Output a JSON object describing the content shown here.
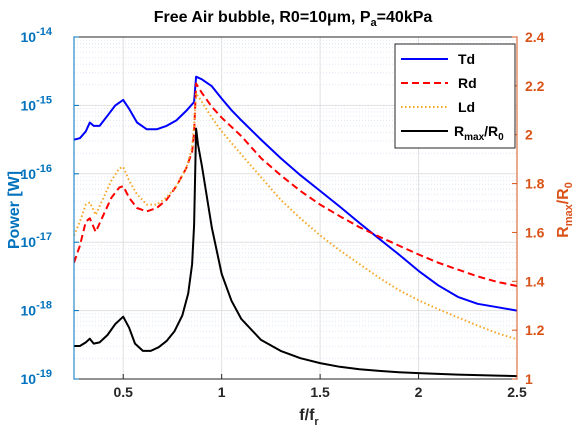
{
  "chart_data": {
    "type": "line",
    "title": "Free Air bubble, R0=10μm, P",
    "title_sub": "a",
    "title_tail": "=40kPa",
    "xlabel": "f/f",
    "xlabel_sub": "r",
    "ylabel_left": "Power [W]",
    "ylabel_right_main": "R",
    "ylabel_right_sub1": "max",
    "ylabel_right_mid": "/R",
    "ylabel_right_sub2": "0",
    "xlim": [
      0.25,
      2.5
    ],
    "ylim_left": [
      -19,
      -14
    ],
    "ylim_left_scale": "log10",
    "ylim_right": [
      1,
      2.4
    ],
    "grid": true,
    "legend_position": "top-right",
    "x_ticks": [
      "0.5",
      "1",
      "1.5",
      "2",
      "2.5"
    ],
    "x_tick_values": [
      0.5,
      1,
      1.5,
      2,
      2.5
    ],
    "y_left_ticks": [
      {
        "base": "10",
        "exp": "-19",
        "value": -19
      },
      {
        "base": "10",
        "exp": "-18",
        "value": -18
      },
      {
        "base": "10",
        "exp": "-17",
        "value": -17
      },
      {
        "base": "10",
        "exp": "-16",
        "value": -16
      },
      {
        "base": "10",
        "exp": "-15",
        "value": -15
      },
      {
        "base": "10",
        "exp": "-14",
        "value": -14
      }
    ],
    "y_right_ticks": [
      "1",
      "1.2",
      "1.4",
      "1.6",
      "1.8",
      "2",
      "2.2",
      "2.4"
    ],
    "y_right_tick_values": [
      1,
      1.2,
      1.4,
      1.6,
      1.8,
      2.0,
      2.2,
      2.4
    ],
    "colors": {
      "left_axis": "#0072bd",
      "right_axis": "#d95319",
      "Td": "#0000ff",
      "Rd": "#ff0000",
      "Ld": "#f5a623",
      "Rmax": "#000000"
    },
    "legend": [
      {
        "key": "Td",
        "label": "Td"
      },
      {
        "key": "Rd",
        "label": "Rd"
      },
      {
        "key": "Ld",
        "label": "Ld"
      },
      {
        "key": "Rmax",
        "label_main": "R",
        "label_sub1": "max",
        "label_mid": "/R",
        "label_sub2": "0"
      }
    ],
    "series": [
      {
        "name": "Td",
        "axis": "left",
        "style": "solid",
        "x": [
          0.25,
          0.28,
          0.31,
          0.33,
          0.35,
          0.38,
          0.42,
          0.46,
          0.5,
          0.53,
          0.57,
          0.62,
          0.67,
          0.72,
          0.77,
          0.82,
          0.86,
          0.87,
          0.9,
          0.95,
          1.0,
          1.05,
          1.1,
          1.2,
          1.3,
          1.4,
          1.5,
          1.6,
          1.7,
          1.8,
          1.9,
          2.0,
          2.1,
          2.2,
          2.3,
          2.4,
          2.5
        ],
        "y": [
          -15.5,
          -15.48,
          -15.38,
          -15.25,
          -15.3,
          -15.3,
          -15.15,
          -15.0,
          -14.92,
          -15.05,
          -15.25,
          -15.35,
          -15.35,
          -15.3,
          -15.22,
          -15.08,
          -14.95,
          -14.58,
          -14.62,
          -14.72,
          -14.9,
          -15.07,
          -15.22,
          -15.5,
          -15.77,
          -16.02,
          -16.25,
          -16.48,
          -16.72,
          -16.95,
          -17.18,
          -17.42,
          -17.63,
          -17.8,
          -17.9,
          -17.95,
          -18.0
        ]
      },
      {
        "name": "Rd",
        "axis": "left",
        "style": "dashed",
        "x": [
          0.25,
          0.28,
          0.31,
          0.33,
          0.36,
          0.4,
          0.44,
          0.48,
          0.5,
          0.53,
          0.57,
          0.62,
          0.67,
          0.72,
          0.77,
          0.82,
          0.85,
          0.86,
          0.87,
          0.9,
          0.95,
          1.0,
          1.1,
          1.2,
          1.3,
          1.4,
          1.5,
          1.6,
          1.7,
          1.8,
          1.9,
          2.0,
          2.1,
          2.2,
          2.3,
          2.4,
          2.5
        ],
        "y": [
          -17.3,
          -17.05,
          -16.7,
          -16.65,
          -16.85,
          -16.6,
          -16.35,
          -16.2,
          -16.18,
          -16.35,
          -16.5,
          -16.55,
          -16.5,
          -16.38,
          -16.18,
          -15.92,
          -15.68,
          -15.4,
          -14.68,
          -14.82,
          -15.02,
          -15.18,
          -15.45,
          -15.77,
          -16.02,
          -16.25,
          -16.45,
          -16.62,
          -16.78,
          -16.92,
          -17.05,
          -17.18,
          -17.3,
          -17.4,
          -17.5,
          -17.58,
          -17.64
        ]
      },
      {
        "name": "Ld",
        "axis": "left",
        "style": "dotted",
        "x": [
          0.25,
          0.28,
          0.31,
          0.33,
          0.36,
          0.4,
          0.44,
          0.48,
          0.5,
          0.53,
          0.57,
          0.62,
          0.67,
          0.72,
          0.77,
          0.82,
          0.85,
          0.86,
          0.87,
          0.9,
          0.95,
          1.0,
          1.1,
          1.2,
          1.3,
          1.4,
          1.5,
          1.6,
          1.7,
          1.8,
          1.9,
          2.0,
          2.1,
          2.2,
          2.3,
          2.4,
          2.5
        ],
        "y": [
          -16.9,
          -16.7,
          -16.45,
          -16.42,
          -16.6,
          -16.35,
          -16.1,
          -15.92,
          -15.9,
          -16.1,
          -16.3,
          -16.45,
          -16.45,
          -16.35,
          -16.18,
          -15.92,
          -15.62,
          -15.3,
          -14.82,
          -14.95,
          -15.18,
          -15.38,
          -15.72,
          -16.05,
          -16.38,
          -16.65,
          -16.9,
          -17.12,
          -17.32,
          -17.52,
          -17.7,
          -17.85,
          -17.98,
          -18.1,
          -18.22,
          -18.33,
          -18.42
        ]
      },
      {
        "name": "R_max/R_0",
        "axis": "right",
        "style": "solid",
        "x": [
          0.25,
          0.28,
          0.31,
          0.33,
          0.35,
          0.38,
          0.42,
          0.46,
          0.5,
          0.53,
          0.56,
          0.6,
          0.64,
          0.68,
          0.72,
          0.76,
          0.8,
          0.83,
          0.85,
          0.86,
          0.87,
          0.88,
          0.9,
          0.95,
          1.0,
          1.05,
          1.1,
          1.2,
          1.3,
          1.4,
          1.5,
          1.6,
          1.7,
          1.8,
          1.9,
          2.0,
          2.1,
          2.2,
          2.3,
          2.4,
          2.5
        ],
        "y": [
          1.135,
          1.135,
          1.15,
          1.165,
          1.145,
          1.15,
          1.18,
          1.225,
          1.255,
          1.21,
          1.145,
          1.115,
          1.115,
          1.13,
          1.155,
          1.195,
          1.26,
          1.35,
          1.47,
          1.63,
          2.025,
          1.96,
          1.87,
          1.62,
          1.43,
          1.32,
          1.245,
          1.16,
          1.115,
          1.085,
          1.065,
          1.05,
          1.04,
          1.033,
          1.028,
          1.024,
          1.021,
          1.018,
          1.016,
          1.014,
          1.012
        ]
      }
    ]
  }
}
